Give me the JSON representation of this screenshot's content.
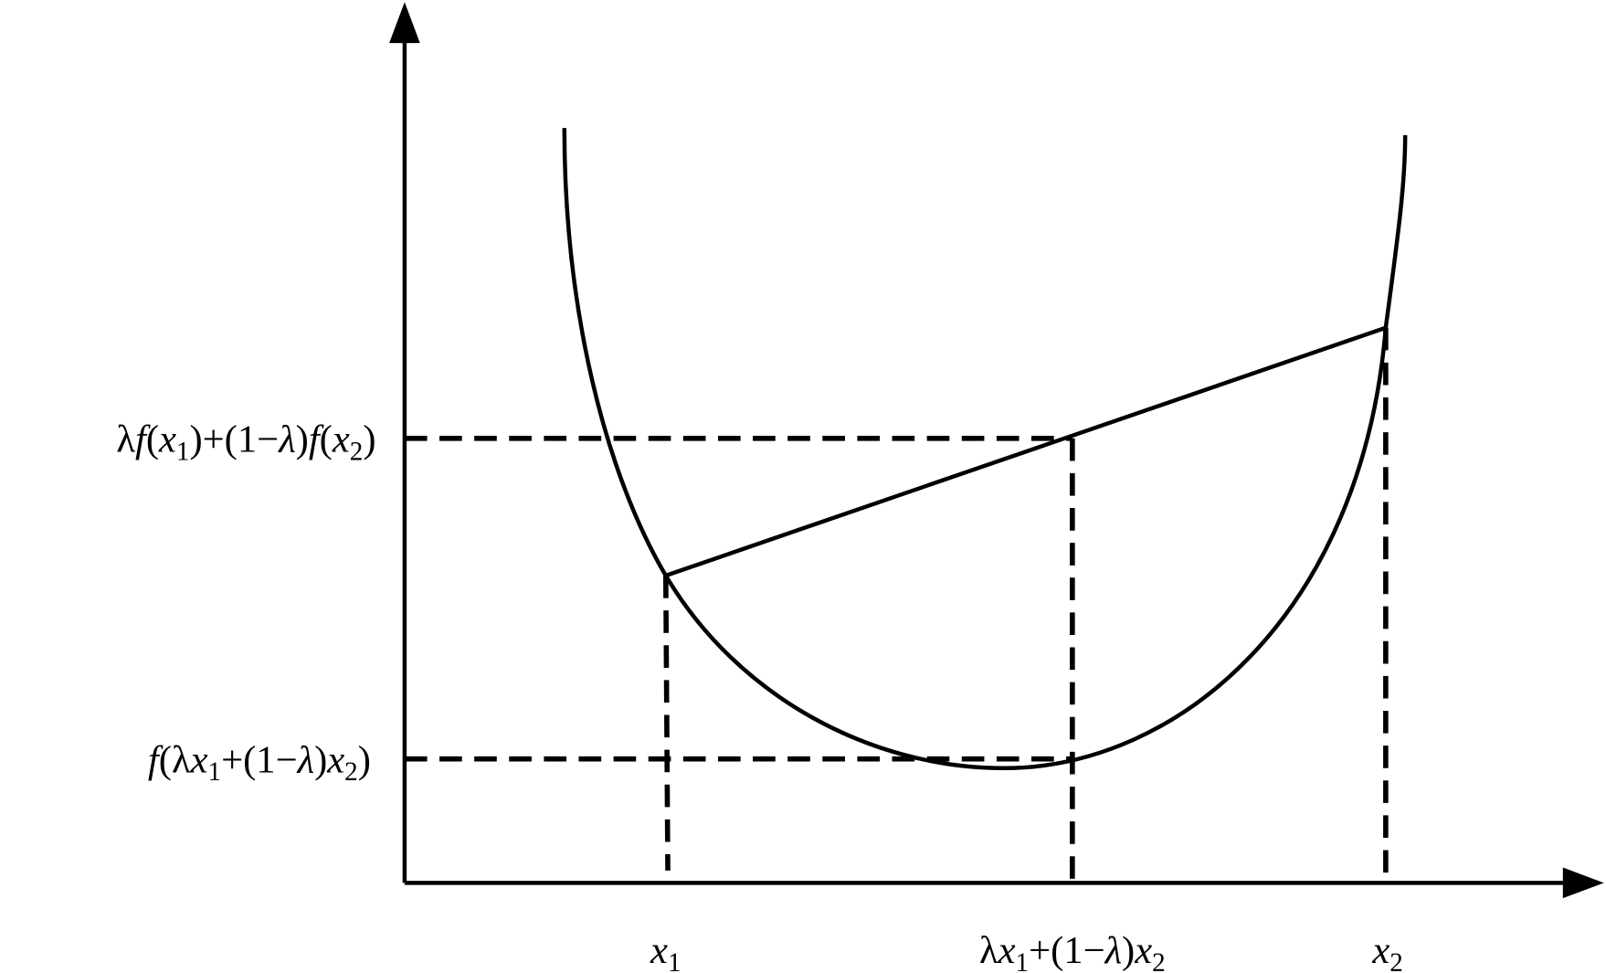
{
  "y_labels": [
    [
      {
        "text": "λ",
        "style": "normal"
      },
      {
        "text": "f",
        "style": "italic"
      },
      {
        "text": "(",
        "style": "normal"
      },
      {
        "text": "x",
        "style": "italic"
      },
      {
        "text": "1",
        "style": "sub"
      },
      {
        "text": ")+(1−",
        "style": "normal"
      },
      {
        "text": "λ",
        "style": "italic"
      },
      {
        "text": ")",
        "style": "normal"
      },
      {
        "text": "f",
        "style": "italic"
      },
      {
        "text": "(",
        "style": "normal"
      },
      {
        "text": "x",
        "style": "italic"
      },
      {
        "text": "2",
        "style": "sub"
      },
      {
        "text": ")",
        "style": "normal"
      }
    ],
    [
      {
        "text": "f",
        "style": "italic"
      },
      {
        "text": "(λ",
        "style": "normal"
      },
      {
        "text": "x",
        "style": "italic"
      },
      {
        "text": "1",
        "style": "sub"
      },
      {
        "text": "+(1−",
        "style": "normal"
      },
      {
        "text": "λ",
        "style": "italic"
      },
      {
        "text": ")",
        "style": "normal"
      },
      {
        "text": "x",
        "style": "italic"
      },
      {
        "text": "2",
        "style": "sub"
      },
      {
        "text": ")",
        "style": "normal"
      }
    ]
  ],
  "x_labels": [
    [
      {
        "text": "x",
        "style": "italic"
      },
      {
        "text": "1",
        "style": "sub"
      }
    ],
    [
      {
        "text": "λ",
        "style": "normal"
      },
      {
        "text": "x",
        "style": "italic"
      },
      {
        "text": "1",
        "style": "sub"
      },
      {
        "text": "+(1−",
        "style": "normal"
      },
      {
        "text": "λ",
        "style": "italic"
      },
      {
        "text": ")",
        "style": "normal"
      },
      {
        "text": "x",
        "style": "italic"
      },
      {
        "text": "2",
        "style": "sub"
      }
    ],
    [
      {
        "text": "x",
        "style": "italic"
      },
      {
        "text": "2",
        "style": "sub"
      }
    ]
  ]
}
